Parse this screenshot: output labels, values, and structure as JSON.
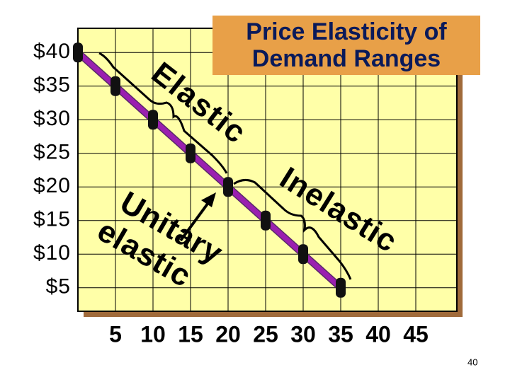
{
  "chart_data": {
    "type": "line",
    "title": "Price Elasticity of Demand Ranges",
    "x": [
      0,
      5,
      10,
      15,
      20,
      25,
      30,
      35
    ],
    "series": [
      {
        "color": "#9b1fb0",
        "values": [
          40,
          35,
          30,
          25,
          20,
          15,
          10,
          5
        ]
      }
    ],
    "xlim": [
      0,
      50
    ],
    "xticks": [
      5,
      10,
      15,
      20,
      25,
      30,
      35,
      40,
      45
    ],
    "ylim": [
      1.5,
      41.5
    ],
    "yticks": [
      {
        "value": 40,
        "label": "$40"
      },
      {
        "value": 35,
        "label": "$35"
      },
      {
        "value": 30,
        "label": "$30"
      },
      {
        "value": 25,
        "label": "$25"
      },
      {
        "value": 20,
        "label": "$20"
      },
      {
        "value": 15,
        "label": "$15"
      },
      {
        "value": 10,
        "label": "$10"
      },
      {
        "value": 5,
        "label": "$5"
      }
    ],
    "grid": true,
    "annotations": [
      "Elastic",
      "Unitary",
      "elastic",
      "Inelastic"
    ]
  },
  "page_number": "40"
}
